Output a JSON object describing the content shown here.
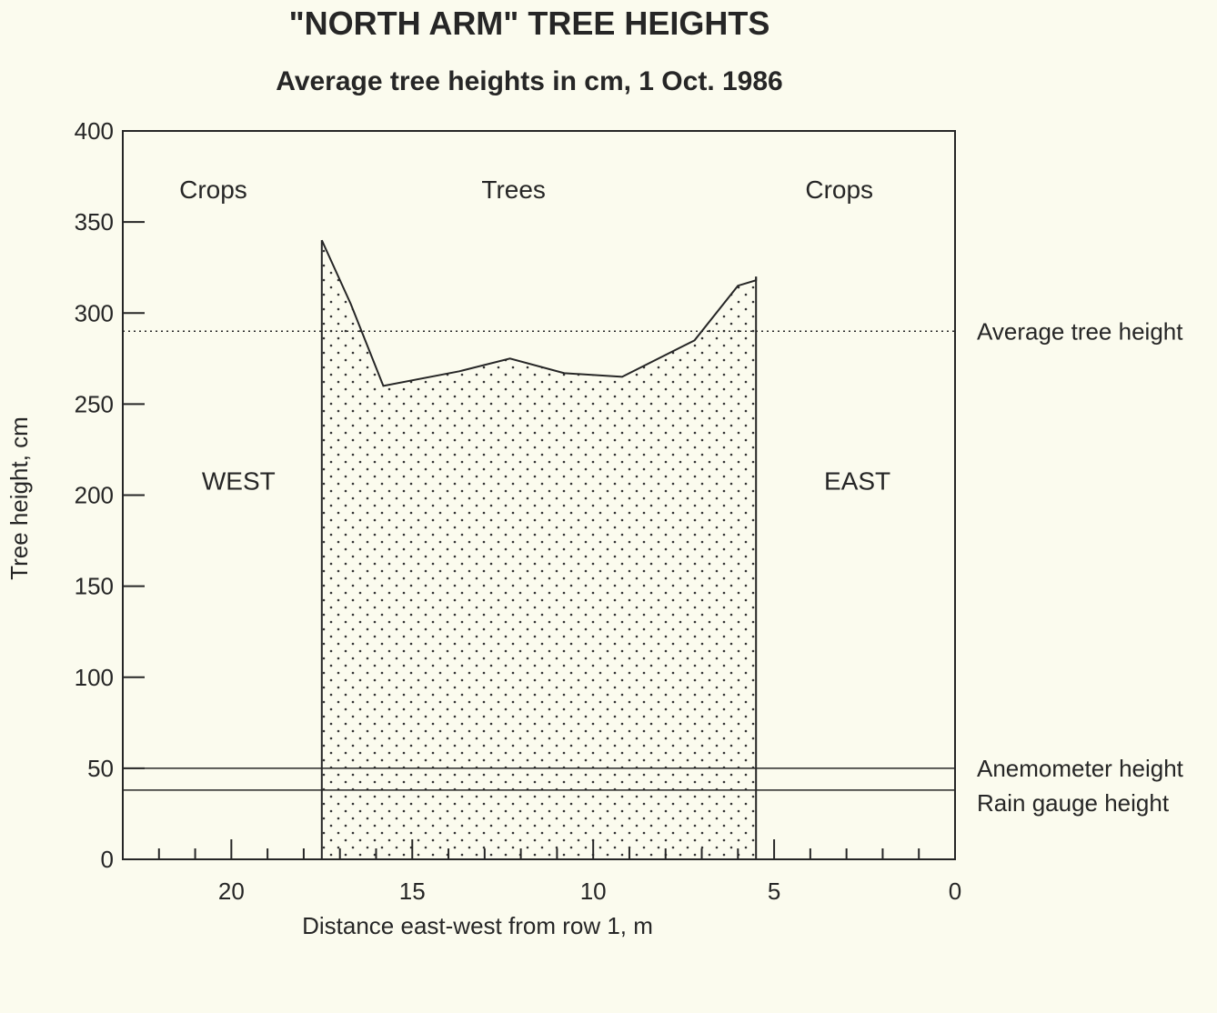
{
  "chart_data": {
    "type": "area",
    "title": "\"NORTH ARM\" TREE HEIGHTS",
    "subtitle": "Average tree heights in cm, 1 Oct. 1986",
    "xlabel": "Distance east-west from row 1, m",
    "ylabel": "Tree height, cm",
    "xlim": [
      23,
      0
    ],
    "ylim": [
      0,
      400
    ],
    "x_reversed": true,
    "x_ticks": [
      20,
      15,
      10,
      5,
      0
    ],
    "y_ticks": [
      0,
      50,
      100,
      150,
      200,
      250,
      300,
      350,
      400
    ],
    "grid": false,
    "series": [
      {
        "fill_pattern": "dots",
        "x": [
          17.5,
          16.7,
          15.8,
          13.7,
          12.3,
          10.8,
          9.2,
          7.2,
          6.0,
          5.5,
          5.5
        ],
        "y": [
          340,
          305,
          260,
          268,
          275,
          267,
          265,
          285,
          315,
          318,
          320
        ]
      }
    ],
    "tree_zone": [
      17.5,
      5.5
    ],
    "reference_lines": [
      {
        "label": "Average tree height",
        "y": 290,
        "style": "dotted"
      },
      {
        "label": "Anemometer height",
        "y": 50,
        "style": "solid"
      },
      {
        "label": "Rain gauge height",
        "y": 38,
        "style": "solid"
      }
    ],
    "annotations": [
      {
        "text": "Crops",
        "x": 20.5,
        "y": 363
      },
      {
        "text": "Trees",
        "x": 12.2,
        "y": 363
      },
      {
        "text": "Crops",
        "x": 3.2,
        "y": 363
      },
      {
        "text": "WEST",
        "x": 19.8,
        "y": 203
      },
      {
        "text": "EAST",
        "x": 2.7,
        "y": 203
      }
    ]
  },
  "colors": {
    "background": "#fbfbee",
    "ink": "#262626"
  }
}
